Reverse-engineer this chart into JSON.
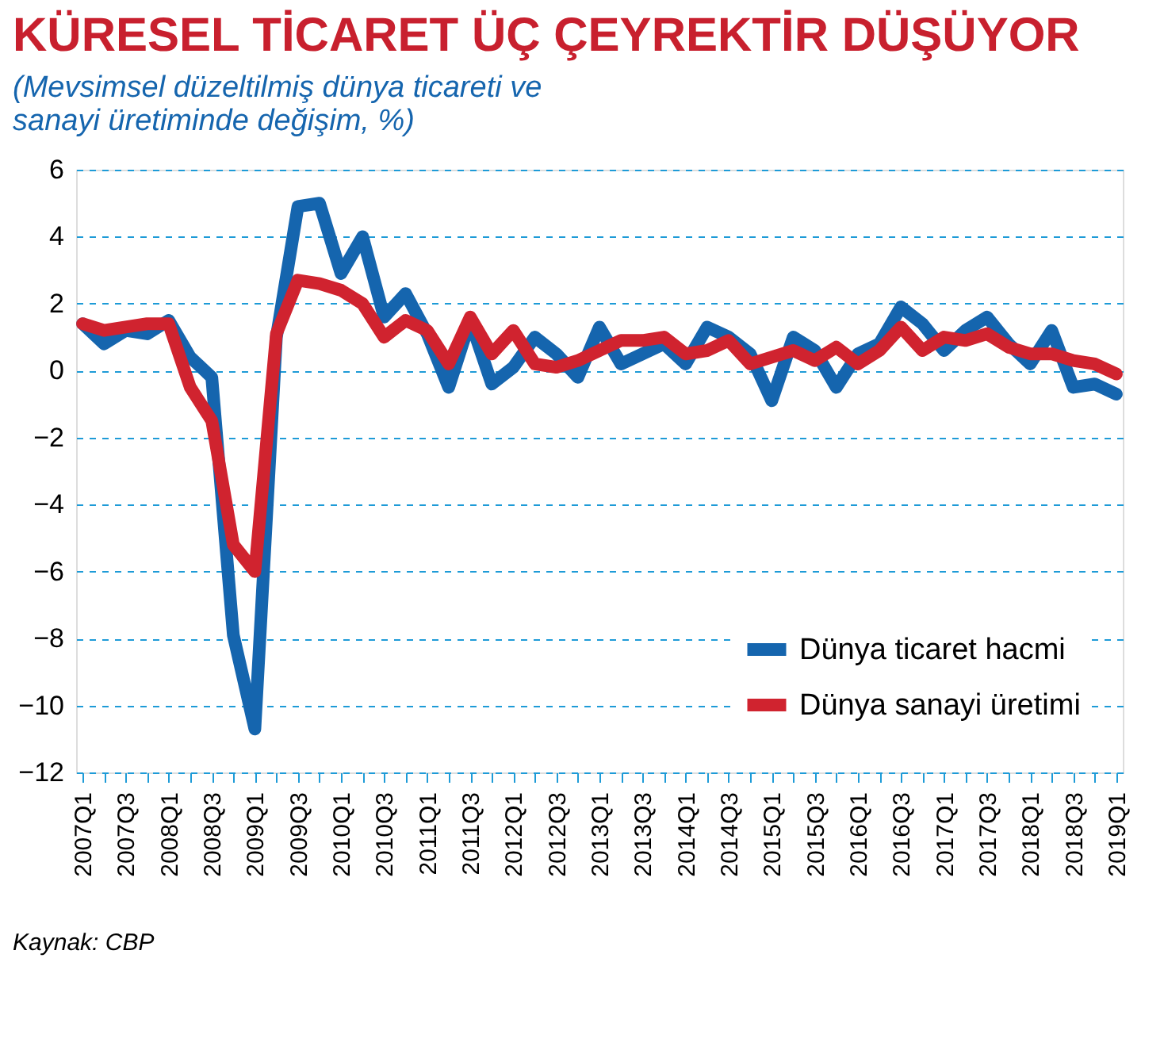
{
  "chart_data": {
    "type": "line",
    "title": "KÜRESEL TİCARET ÜÇ ÇEYREKTİR DÜŞÜYOR",
    "subtitle": [
      "(Mevsimsel düzeltilmiş dünya ticareti ve",
      "sanayi üretiminde değişim, %)"
    ],
    "categories": [
      "2007Q1",
      null,
      "2007Q3",
      null,
      "2008Q1",
      null,
      "2008Q3",
      null,
      "2009Q1",
      null,
      "2009Q3",
      null,
      "2010Q1",
      null,
      "2010Q3",
      null,
      "2011Q1",
      null,
      "2011Q3",
      null,
      "2012Q1",
      null,
      "2012Q3",
      null,
      "2013Q1",
      null,
      "2013Q3",
      null,
      "2014Q1",
      null,
      "2014Q3",
      null,
      "2015Q1",
      null,
      "2015Q3",
      null,
      "2016Q1",
      null,
      "2016Q3",
      null,
      "2017Q1",
      null,
      "2017Q3",
      null,
      "2018Q1",
      null,
      "2018Q3",
      null,
      "2019Q1"
    ],
    "series": [
      {
        "name": "Dünya ticaret hacmi",
        "color": "#1565ae",
        "values": [
          1.4,
          0.8,
          1.2,
          1.1,
          1.5,
          0.4,
          -0.2,
          -7.9,
          -10.7,
          1.0,
          4.9,
          5.0,
          2.9,
          4.0,
          1.6,
          2.3,
          1.1,
          -0.5,
          1.5,
          -0.4,
          0.1,
          1.0,
          0.5,
          -0.2,
          1.3,
          0.2,
          0.5,
          0.8,
          0.2,
          1.3,
          1.0,
          0.5,
          -0.9,
          1.0,
          0.6,
          -0.5,
          0.5,
          0.8,
          1.9,
          1.4,
          0.6,
          1.2,
          1.6,
          0.8,
          0.2,
          1.2,
          -0.5,
          -0.4,
          -0.7
        ]
      },
      {
        "name": "Dünya sanayi üretimi",
        "color": "#d0232f",
        "values": [
          1.4,
          1.2,
          1.3,
          1.4,
          1.4,
          -0.5,
          -1.5,
          -5.2,
          -6.0,
          1.1,
          2.7,
          2.6,
          2.4,
          2.0,
          1.0,
          1.5,
          1.2,
          0.2,
          1.6,
          0.5,
          1.2,
          0.2,
          0.1,
          0.3,
          0.6,
          0.9,
          0.9,
          1.0,
          0.5,
          0.6,
          0.9,
          0.2,
          0.4,
          0.6,
          0.3,
          0.7,
          0.2,
          0.6,
          1.3,
          0.6,
          1.0,
          0.9,
          1.1,
          0.7,
          0.5,
          0.5,
          0.3,
          0.2,
          -0.1
        ]
      }
    ],
    "ylim": [
      -12,
      6
    ],
    "yticks": [
      -12,
      -10,
      -8,
      -6,
      -4,
      -2,
      0,
      2,
      4,
      6
    ],
    "grid": "y",
    "legend": "bottom right",
    "marker": "none",
    "line_style": "solid",
    "annotations": [
      "Kaynak: CBP"
    ]
  }
}
